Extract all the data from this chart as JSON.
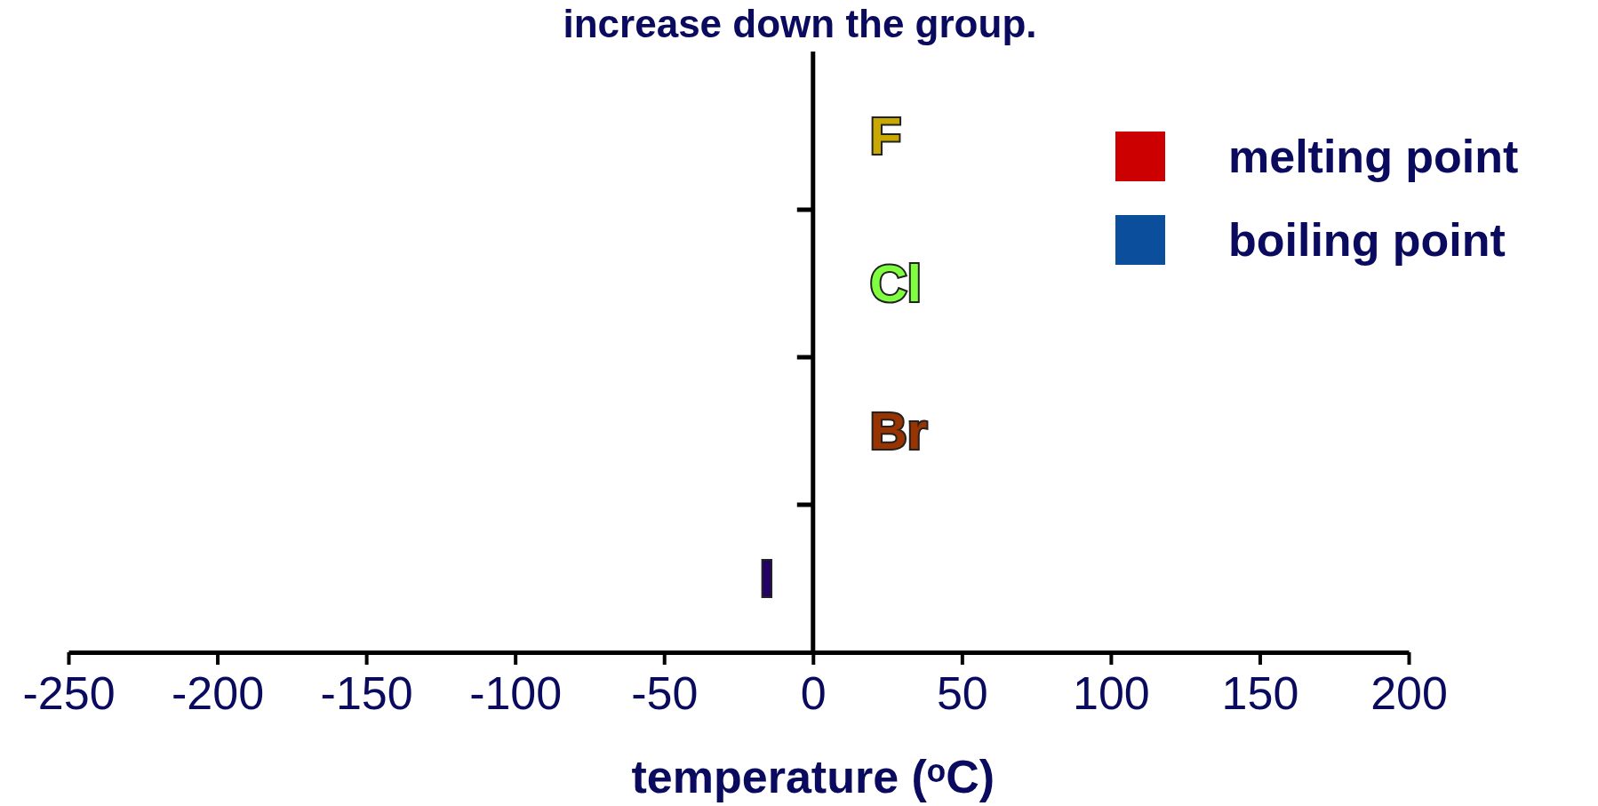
{
  "chart_data": {
    "type": "bar",
    "orientation": "horizontal",
    "title": "increase down the group.",
    "xlabel": "temperature (ᵒC)",
    "categories": [
      "F",
      "Cl",
      "Br",
      "I"
    ],
    "series": [
      {
        "name": "melting point",
        "color": "#cc0000",
        "values": [
          null,
          null,
          null,
          null
        ]
      },
      {
        "name": "boiling point",
        "color": "#0b4f9c",
        "values": [
          null,
          null,
          null,
          null
        ]
      }
    ],
    "xlim": [
      -250,
      200
    ],
    "xticks": [
      -250,
      -200,
      -150,
      -100,
      -50,
      0,
      50,
      100,
      150,
      200
    ],
    "legend": "top right",
    "grid": false
  }
}
